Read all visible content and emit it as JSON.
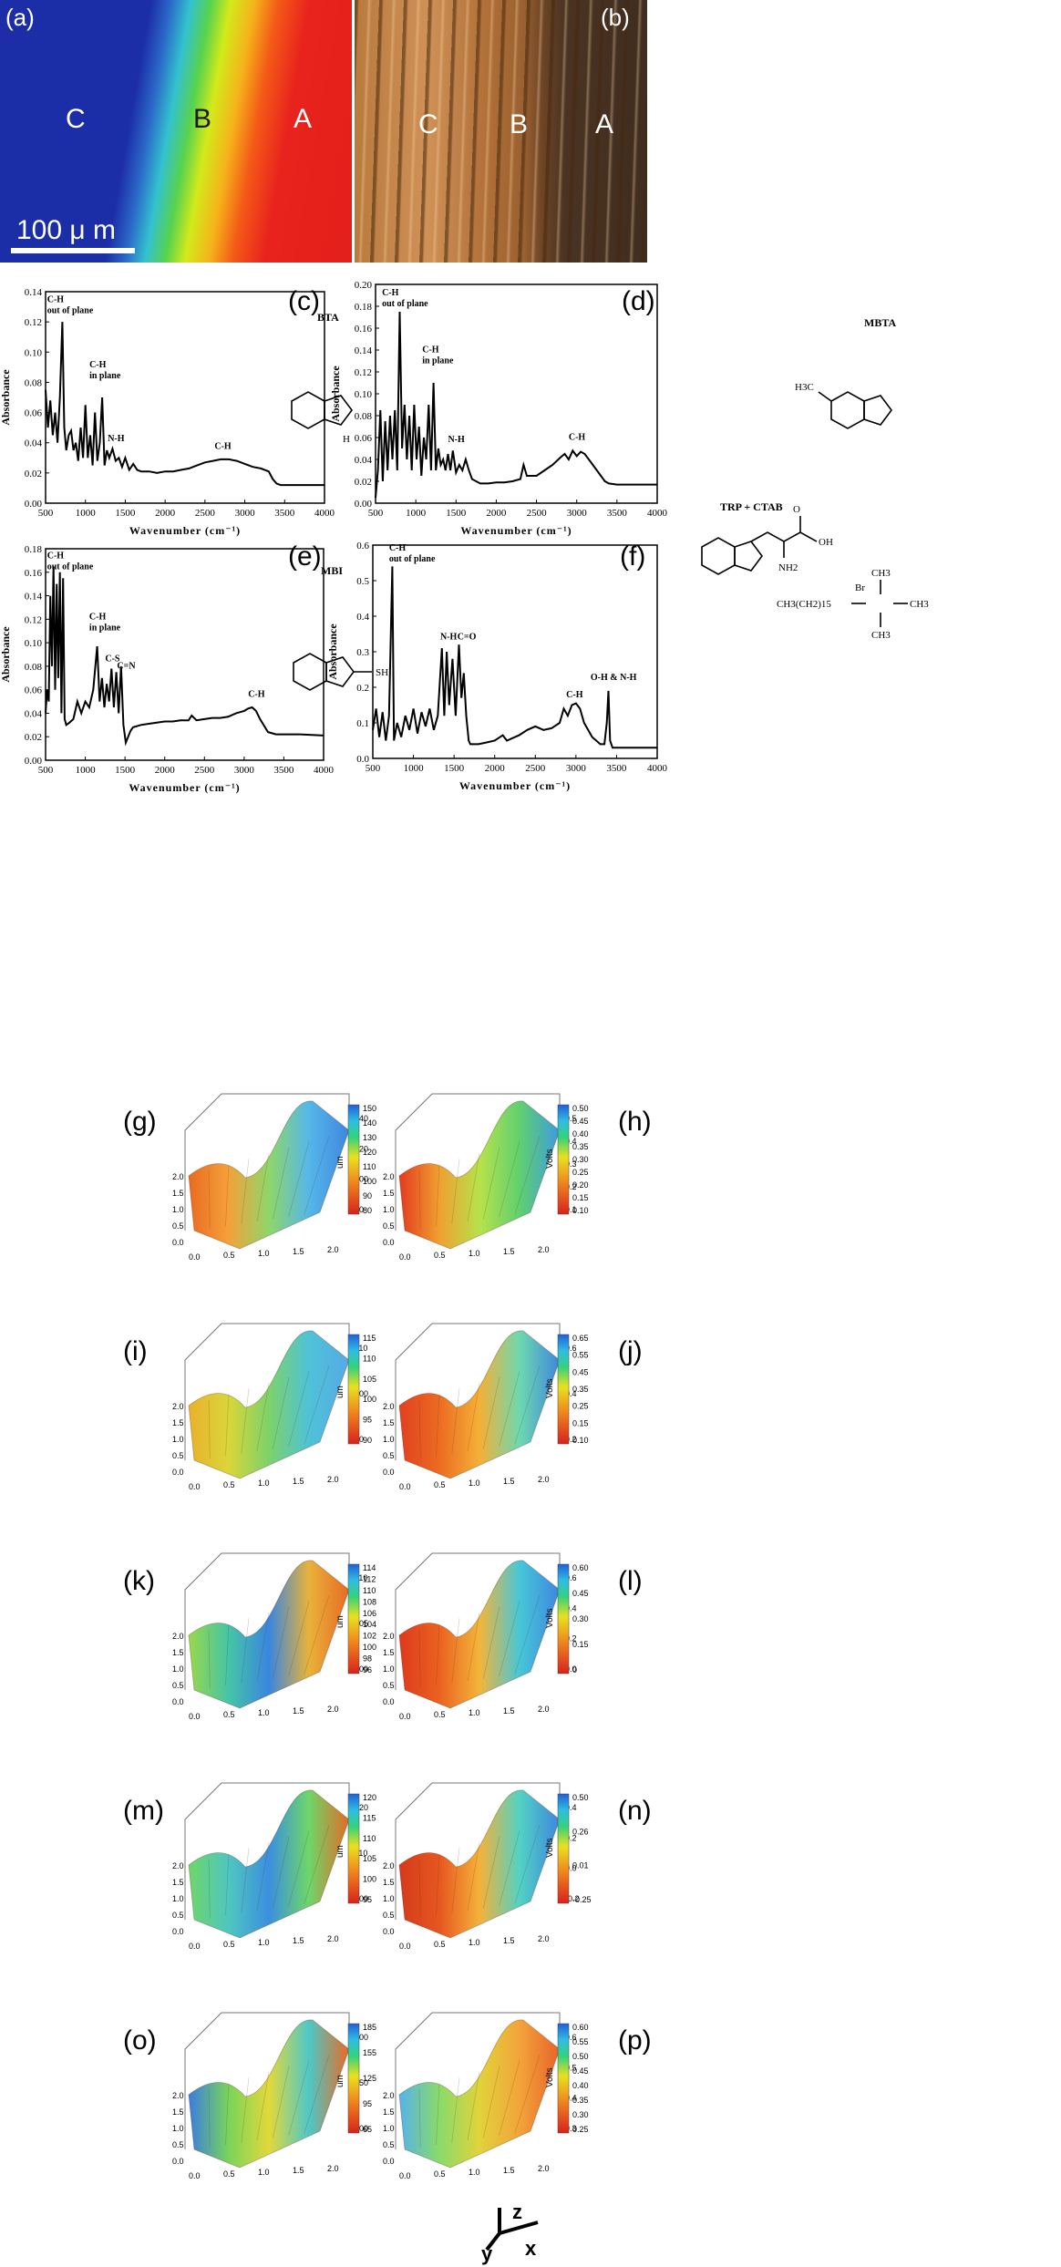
{
  "micrographs": {
    "a": {
      "label": "(a)",
      "regions": [
        "C",
        "B",
        "A"
      ],
      "scale_bar": "100  μ m"
    },
    "b": {
      "label": "(b)",
      "regions": [
        "C",
        "B",
        "A"
      ]
    }
  },
  "chart_data": [
    {
      "id": "c",
      "type": "line",
      "label": "(c)",
      "compound": "BTA",
      "xlabel": "Wavenumber (cm⁻¹)",
      "ylabel": "Absorbance",
      "xlim": [
        500,
        4000
      ],
      "ylim": [
        0,
        0.14
      ],
      "xticks": [
        500,
        1000,
        1500,
        2000,
        2500,
        3000,
        3500,
        4000
      ],
      "yticks": [
        0.0,
        0.02,
        0.04,
        0.06,
        0.08,
        0.1,
        0.12,
        0.14
      ],
      "x": [
        500,
        530,
        560,
        590,
        620,
        650,
        680,
        710,
        735,
        760,
        790,
        820,
        850,
        880,
        910,
        940,
        970,
        1000,
        1030,
        1060,
        1090,
        1120,
        1150,
        1180,
        1210,
        1240,
        1270,
        1300,
        1340,
        1380,
        1420,
        1460,
        1500,
        1550,
        1600,
        1650,
        1700,
        1800,
        1900,
        2000,
        2100,
        2200,
        2300,
        2400,
        2500,
        2600,
        2700,
        2800,
        2900,
        3000,
        3100,
        3200,
        3300,
        3350,
        3400,
        3450,
        3500,
        3700,
        4000
      ],
      "y": [
        0.075,
        0.05,
        0.068,
        0.045,
        0.06,
        0.04,
        0.07,
        0.12,
        0.05,
        0.035,
        0.045,
        0.048,
        0.035,
        0.04,
        0.028,
        0.05,
        0.03,
        0.065,
        0.03,
        0.045,
        0.025,
        0.06,
        0.028,
        0.04,
        0.07,
        0.025,
        0.035,
        0.03,
        0.036,
        0.028,
        0.03,
        0.024,
        0.03,
        0.022,
        0.026,
        0.022,
        0.021,
        0.021,
        0.02,
        0.021,
        0.021,
        0.022,
        0.023,
        0.025,
        0.027,
        0.028,
        0.029,
        0.029,
        0.028,
        0.026,
        0.024,
        0.023,
        0.021,
        0.016,
        0.013,
        0.012,
        0.012,
        0.012,
        0.012
      ],
      "annotations": [
        {
          "text": "C-H",
          "text2": "out of plane",
          "x": 520,
          "y": 0.133
        },
        {
          "text": "C-H",
          "text2": "in plane",
          "x": 1050,
          "y": 0.09
        },
        {
          "text": "N-H",
          "text2": "",
          "x": 1280,
          "y": 0.041
        },
        {
          "text": "C-H",
          "text2": "",
          "x": 2620,
          "y": 0.036
        }
      ]
    },
    {
      "id": "d",
      "type": "line",
      "label": "(d)",
      "compound": "MBTA",
      "xlabel": "Wavenumber (cm⁻¹)",
      "ylabel": "Absorbance",
      "xlim": [
        500,
        4000
      ],
      "ylim": [
        0,
        0.2
      ],
      "xticks": [
        500,
        1000,
        1500,
        2000,
        2500,
        3000,
        3500,
        4000
      ],
      "yticks": [
        0.0,
        0.02,
        0.04,
        0.06,
        0.08,
        0.1,
        0.12,
        0.14,
        0.16,
        0.18,
        0.2
      ],
      "x": [
        500,
        530,
        560,
        590,
        620,
        650,
        680,
        710,
        740,
        770,
        800,
        830,
        860,
        890,
        920,
        950,
        980,
        1010,
        1040,
        1070,
        1100,
        1130,
        1160,
        1190,
        1220,
        1250,
        1280,
        1310,
        1340,
        1370,
        1400,
        1430,
        1460,
        1500,
        1540,
        1580,
        1620,
        1660,
        1700,
        1800,
        1900,
        2000,
        2100,
        2200,
        2300,
        2340,
        2380,
        2500,
        2600,
        2700,
        2800,
        2850,
        2900,
        2950,
        3000,
        3050,
        3100,
        3200,
        3300,
        3350,
        3400,
        3500,
        3700,
        4000
      ],
      "y": [
        0.005,
        0.03,
        0.085,
        0.02,
        0.075,
        0.03,
        0.08,
        0.04,
        0.085,
        0.03,
        0.175,
        0.05,
        0.09,
        0.04,
        0.08,
        0.03,
        0.09,
        0.04,
        0.07,
        0.025,
        0.06,
        0.04,
        0.09,
        0.03,
        0.11,
        0.03,
        0.05,
        0.035,
        0.04,
        0.03,
        0.045,
        0.03,
        0.048,
        0.028,
        0.035,
        0.03,
        0.04,
        0.03,
        0.022,
        0.018,
        0.018,
        0.019,
        0.019,
        0.02,
        0.022,
        0.035,
        0.025,
        0.025,
        0.03,
        0.035,
        0.042,
        0.045,
        0.04,
        0.048,
        0.043,
        0.047,
        0.045,
        0.035,
        0.025,
        0.02,
        0.018,
        0.017,
        0.017,
        0.017
      ],
      "annotations": [
        {
          "text": "C-H",
          "text2": "out of plane",
          "x": 580,
          "y": 0.19
        },
        {
          "text": "C-H",
          "text2": "in plane",
          "x": 1080,
          "y": 0.138
        },
        {
          "text": "N-H",
          "text2": "",
          "x": 1400,
          "y": 0.056
        },
        {
          "text": "C-H",
          "text2": "",
          "x": 2900,
          "y": 0.058
        }
      ]
    },
    {
      "id": "e",
      "type": "line",
      "label": "(e)",
      "compound": "MBI",
      "xlabel": "Wavenumber (cm⁻¹)",
      "ylabel": "Absorbance",
      "xlim": [
        500,
        4000
      ],
      "ylim": [
        0,
        0.18
      ],
      "xticks": [
        500,
        1000,
        1500,
        2000,
        2500,
        3000,
        3500,
        4000
      ],
      "yticks": [
        0.0,
        0.02,
        0.04,
        0.06,
        0.08,
        0.1,
        0.12,
        0.14,
        0.16,
        0.18
      ],
      "x": [
        500,
        520,
        540,
        560,
        580,
        600,
        620,
        640,
        660,
        680,
        700,
        720,
        740,
        760,
        800,
        850,
        900,
        950,
        1000,
        1050,
        1100,
        1150,
        1180,
        1210,
        1240,
        1270,
        1300,
        1330,
        1360,
        1390,
        1420,
        1450,
        1480,
        1510,
        1540,
        1570,
        1600,
        1700,
        1800,
        1900,
        2000,
        2100,
        2200,
        2300,
        2340,
        2400,
        2500,
        2600,
        2700,
        2800,
        2900,
        3000,
        3050,
        3100,
        3150,
        3200,
        3300,
        3400,
        3500,
        3700,
        4000
      ],
      "y": [
        0.04,
        0.06,
        0.05,
        0.14,
        0.08,
        0.165,
        0.06,
        0.15,
        0.07,
        0.16,
        0.04,
        0.155,
        0.035,
        0.03,
        0.032,
        0.035,
        0.05,
        0.04,
        0.05,
        0.045,
        0.06,
        0.097,
        0.05,
        0.07,
        0.045,
        0.065,
        0.05,
        0.078,
        0.045,
        0.075,
        0.04,
        0.08,
        0.03,
        0.015,
        0.02,
        0.025,
        0.028,
        0.03,
        0.031,
        0.032,
        0.033,
        0.033,
        0.034,
        0.034,
        0.038,
        0.034,
        0.035,
        0.036,
        0.036,
        0.037,
        0.04,
        0.042,
        0.044,
        0.045,
        0.042,
        0.035,
        0.024,
        0.022,
        0.022,
        0.022,
        0.021
      ],
      "annotations": [
        {
          "text": "C-H",
          "text2": "out of plane",
          "x": 520,
          "y": 0.172
        },
        {
          "text": "C-H",
          "text2": "in plane",
          "x": 1050,
          "y": 0.12
        },
        {
          "text": "C-S",
          "text2": "",
          "x": 1250,
          "y": 0.084
        },
        {
          "text": "C=N",
          "text2": "",
          "x": 1400,
          "y": 0.078
        },
        {
          "text": "C-H",
          "text2": "",
          "x": 3050,
          "y": 0.054
        }
      ]
    },
    {
      "id": "f",
      "type": "line",
      "label": "(f)",
      "compound": "TRP + CTAB",
      "xlabel": "Wavenumber (cm⁻¹)",
      "ylabel": "Absorbance",
      "xlim": [
        500,
        4000
      ],
      "ylim": [
        0,
        0.6
      ],
      "xticks": [
        500,
        1000,
        1500,
        2000,
        2500,
        3000,
        3500,
        4000
      ],
      "yticks": [
        0.0,
        0.1,
        0.2,
        0.3,
        0.4,
        0.5,
        0.6
      ],
      "x": [
        500,
        540,
        580,
        620,
        660,
        700,
        740,
        760,
        800,
        850,
        900,
        950,
        1000,
        1050,
        1100,
        1150,
        1200,
        1250,
        1300,
        1350,
        1380,
        1410,
        1440,
        1480,
        1520,
        1560,
        1590,
        1620,
        1650,
        1680,
        1700,
        1800,
        1900,
        2000,
        2100,
        2150,
        2200,
        2300,
        2400,
        2500,
        2600,
        2700,
        2800,
        2850,
        2900,
        2950,
        3000,
        3050,
        3100,
        3200,
        3300,
        3350,
        3380,
        3400,
        3420,
        3450,
        3500,
        3700,
        4000
      ],
      "y": [
        0.08,
        0.14,
        0.06,
        0.13,
        0.05,
        0.12,
        0.54,
        0.05,
        0.1,
        0.06,
        0.12,
        0.08,
        0.14,
        0.07,
        0.13,
        0.09,
        0.14,
        0.08,
        0.12,
        0.31,
        0.12,
        0.3,
        0.15,
        0.28,
        0.12,
        0.32,
        0.17,
        0.24,
        0.12,
        0.05,
        0.04,
        0.04,
        0.045,
        0.05,
        0.065,
        0.05,
        0.055,
        0.065,
        0.08,
        0.09,
        0.08,
        0.085,
        0.1,
        0.14,
        0.12,
        0.15,
        0.155,
        0.14,
        0.1,
        0.06,
        0.04,
        0.04,
        0.1,
        0.19,
        0.05,
        0.03,
        0.03,
        0.03,
        0.03
      ],
      "annotations": [
        {
          "text": "C-H",
          "text2": "out of plane",
          "x": 700,
          "y": 0.585
        },
        {
          "text": "N-H",
          "text2": "",
          "x": 1330,
          "y": 0.335
        },
        {
          "text": "C=O",
          "text2": "",
          "x": 1540,
          "y": 0.335
        },
        {
          "text": "C-H",
          "text2": "",
          "x": 2880,
          "y": 0.172
        },
        {
          "text": "O-H & N-H",
          "text2": "",
          "x": 3180,
          "y": 0.22
        }
      ]
    }
  ],
  "surface_plots": [
    {
      "id": "g",
      "label": "(g)",
      "unit": "um",
      "colorbar_ticks": [
        "150",
        "140",
        "130",
        "120",
        "110",
        "100",
        "90",
        "80"
      ],
      "z_ticks": [
        "140",
        "120",
        "100",
        "80"
      ]
    },
    {
      "id": "h",
      "label": "(h)",
      "unit": "Volts",
      "colorbar_ticks": [
        "0.50",
        "0.45",
        "0.40",
        "0.35",
        "0.30",
        "0.25",
        "0.20",
        "0.15",
        "0.10"
      ],
      "z_ticks": [
        "0.5",
        "0.4",
        "0.3",
        "0.2",
        "0.1"
      ]
    },
    {
      "id": "i",
      "label": "(i)",
      "unit": "um",
      "colorbar_ticks": [
        "115",
        "110",
        "105",
        "100",
        "95",
        "90"
      ],
      "z_ticks": [
        "110",
        "100",
        "90"
      ]
    },
    {
      "id": "j",
      "label": "(j)",
      "unit": "Volts",
      "colorbar_ticks": [
        "0.65",
        "0.55",
        "0.45",
        "0.35",
        "0.25",
        "0.15",
        "0.10"
      ],
      "z_ticks": [
        "0.6",
        "0.4",
        "0.2"
      ]
    },
    {
      "id": "k",
      "label": "(k)",
      "unit": "um",
      "colorbar_ticks": [
        "114",
        "112",
        "110",
        "108",
        "106",
        "104",
        "102",
        "100",
        "98",
        "96"
      ],
      "z_ticks": [
        "110",
        "105",
        "100"
      ]
    },
    {
      "id": "l",
      "label": "(l)",
      "unit": "Volts",
      "colorbar_ticks": [
        "0.60",
        "0.45",
        "0.30",
        "0.15",
        "0"
      ],
      "z_ticks": [
        "0.6",
        "0.4",
        "0.2",
        "0.0"
      ]
    },
    {
      "id": "m",
      "label": "(m)",
      "unit": "um",
      "colorbar_ticks": [
        "120",
        "115",
        "110",
        "105",
        "100",
        "95"
      ],
      "z_ticks": [
        "120",
        "110",
        "100"
      ]
    },
    {
      "id": "n",
      "label": "(n)",
      "unit": "Volts",
      "colorbar_ticks": [
        "0.50",
        "0.26",
        "0.01",
        "-0.25"
      ],
      "z_ticks": [
        "0.4",
        "0.2",
        "0.0",
        "-0.2"
      ]
    },
    {
      "id": "o",
      "label": "(o)",
      "unit": "um",
      "colorbar_ticks": [
        "185",
        "155",
        "125",
        "95",
        "65"
      ],
      "z_ticks": [
        "200",
        "150",
        "100"
      ]
    },
    {
      "id": "p",
      "label": "(p)",
      "unit": "Volts",
      "colorbar_ticks": [
        "0.60",
        "0.55",
        "0.50",
        "0.45",
        "0.40",
        "0.35",
        "0.30",
        "0.25"
      ],
      "z_ticks": [
        "0.6",
        "0.5",
        "0.4",
        "0.3"
      ]
    }
  ],
  "surface_axes": {
    "ticks": [
      "0.0",
      "0.5",
      "1.0",
      "1.5",
      "2.0"
    ],
    "y_ticks": [
      "0.0",
      "0.5",
      "1.0",
      "1.5",
      "2.0"
    ]
  },
  "axes_triad": {
    "z": "z",
    "y": "y",
    "x": "x"
  },
  "molecules": {
    "bta_H": "H",
    "mbta_sub": "H3C",
    "mbi_sub": "SH",
    "trp_oh": "OH",
    "trp_o": "O",
    "trp_nh2": "NH2",
    "ctab": "CH3(CH2)15",
    "ctab_br": "Br",
    "ctab_ch3": "CH3"
  }
}
